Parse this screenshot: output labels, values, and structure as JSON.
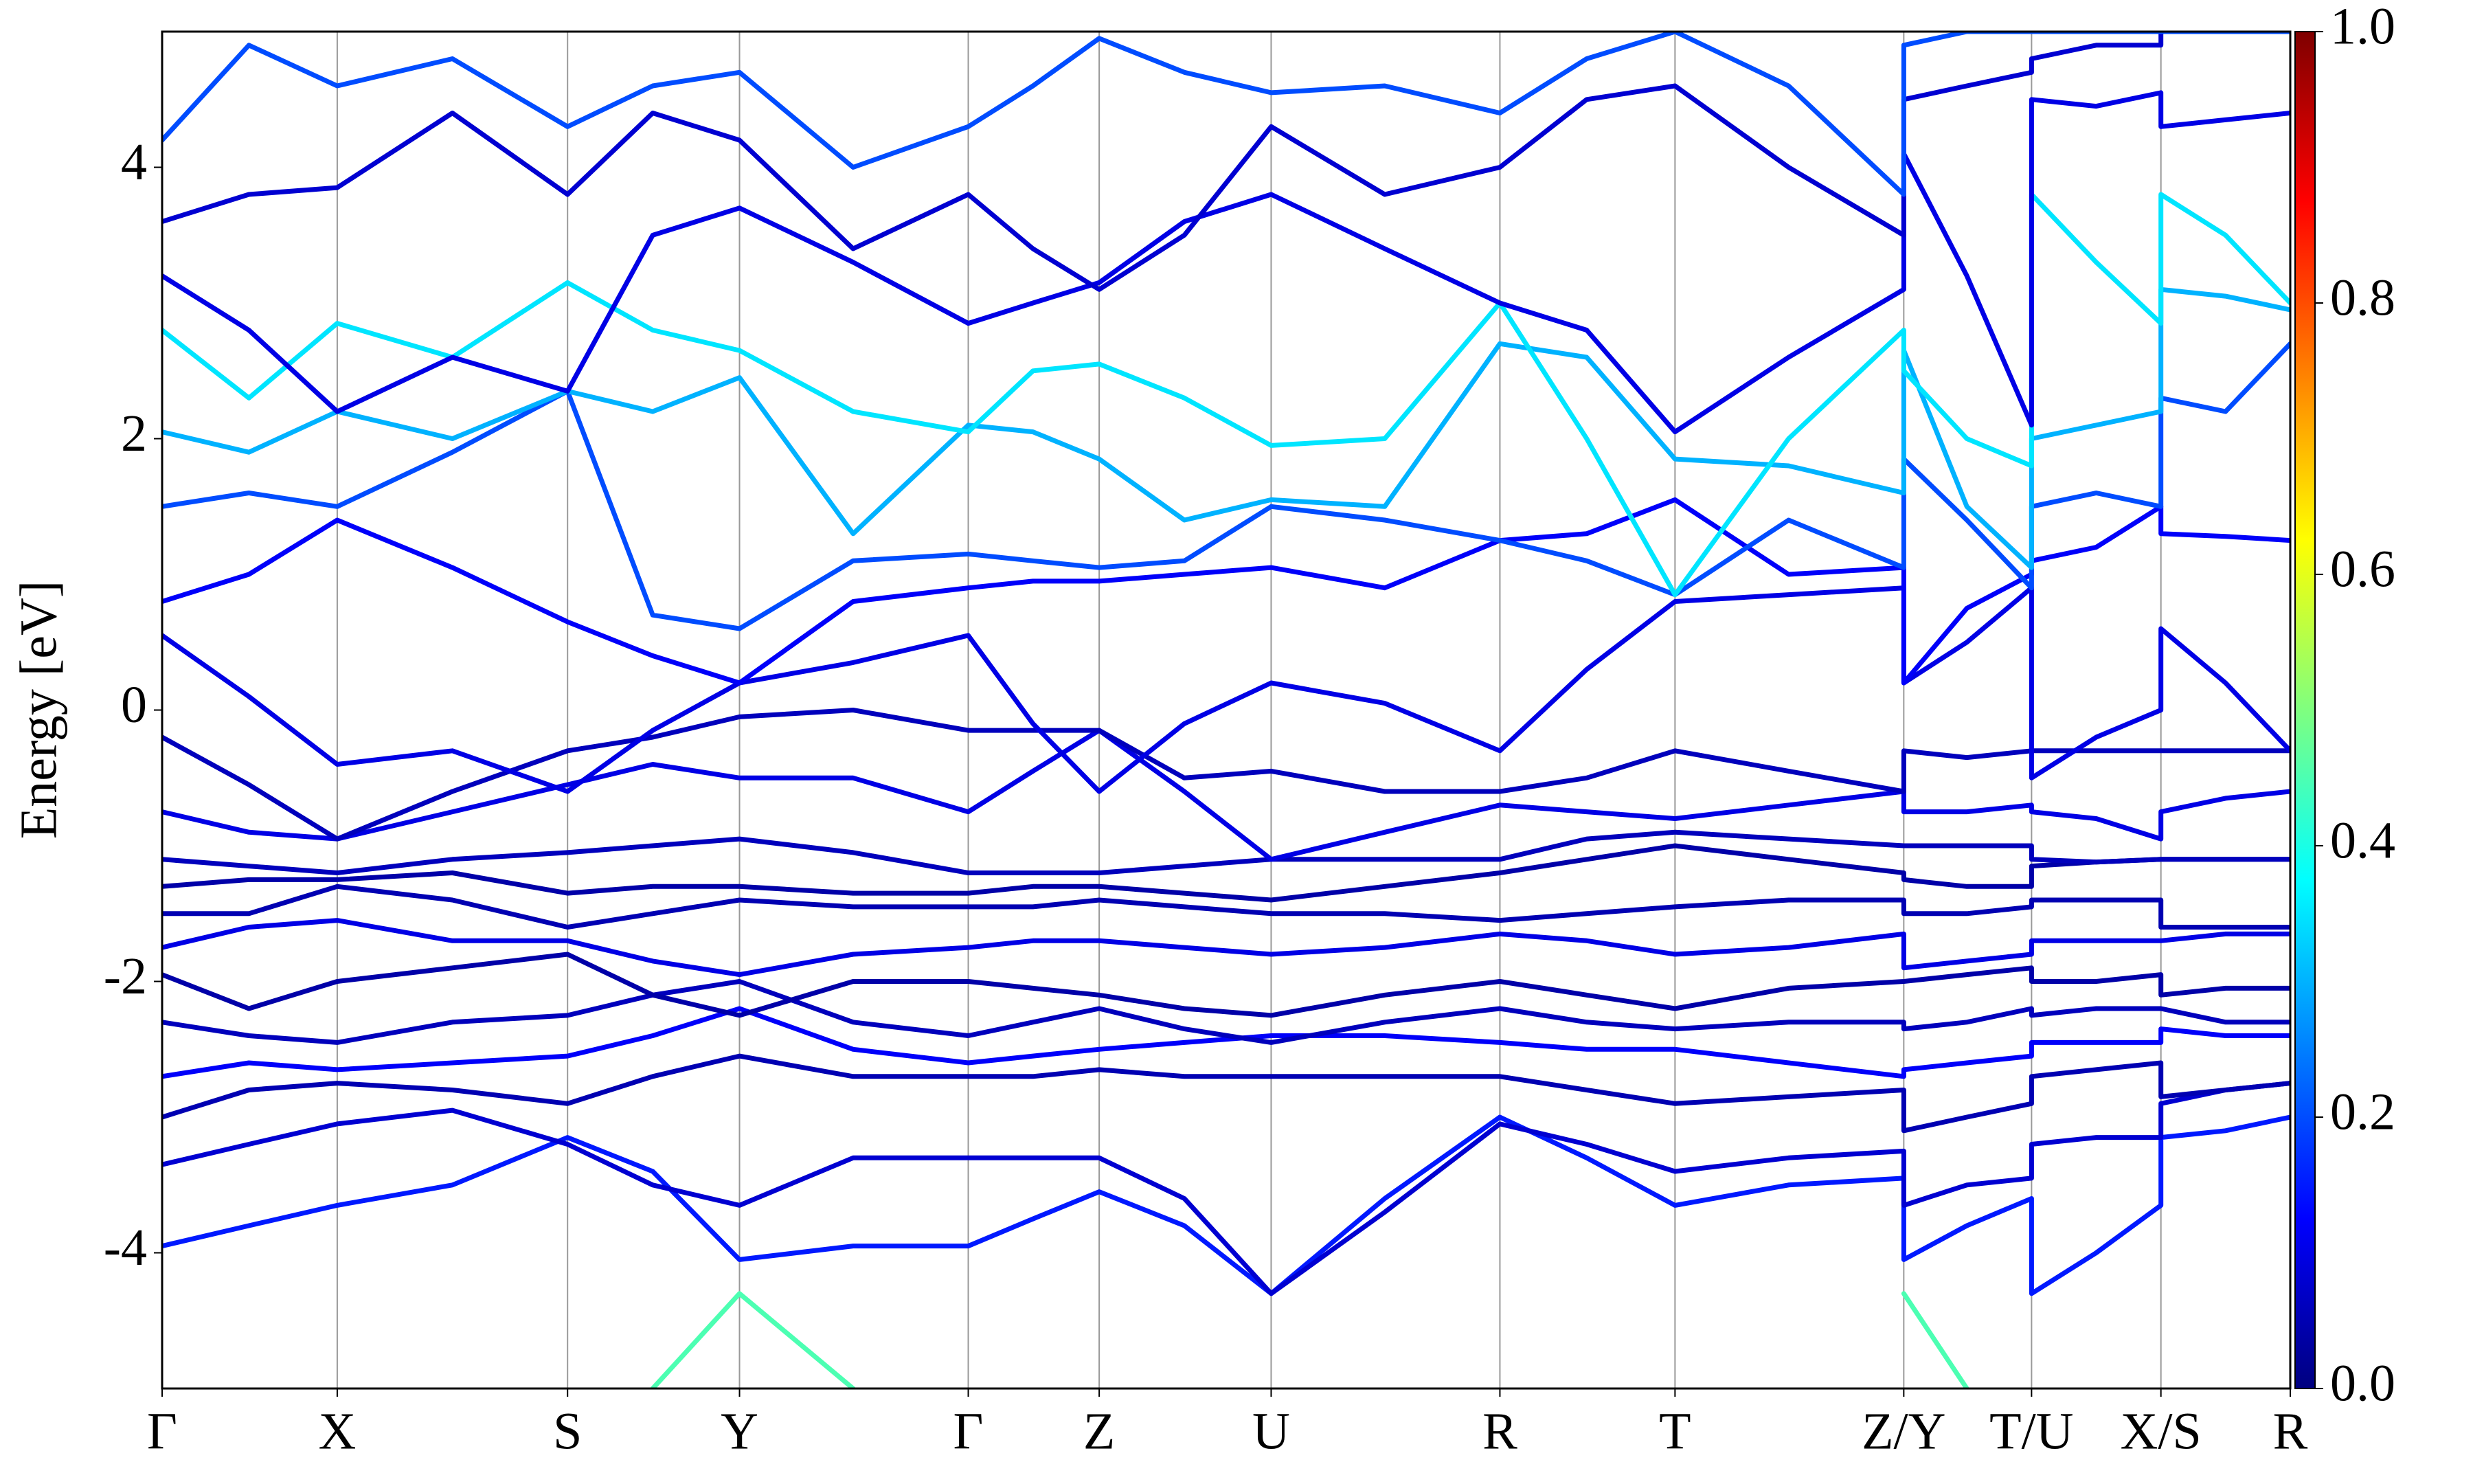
{
  "chart_data": {
    "type": "line",
    "ylabel": "Energy [eV]",
    "x": [
      0,
      0.55,
      1.11,
      1.84,
      2.57,
      3.11,
      3.66,
      4.38,
      5.11,
      5.52,
      5.94,
      6.48,
      7.03,
      7.75,
      8.48,
      9.03,
      9.59,
      10.31,
      11.04,
      11.04,
      11.44,
      11.85,
      11.85,
      12.26,
      12.67,
      12.67,
      13.08,
      13.49
    ],
    "xlim": [
      0,
      13.49
    ],
    "xticks": [
      {
        "value": 0,
        "label": "Γ"
      },
      {
        "value": 1.11,
        "label": "X"
      },
      {
        "value": 2.57,
        "label": "S"
      },
      {
        "value": 3.66,
        "label": "Y"
      },
      {
        "value": 5.11,
        "label": "Γ"
      },
      {
        "value": 5.94,
        "label": "Z"
      },
      {
        "value": 7.03,
        "label": "U"
      },
      {
        "value": 8.48,
        "label": "R"
      },
      {
        "value": 9.59,
        "label": "T"
      },
      {
        "value": 11.04,
        "label": "Z/Y"
      },
      {
        "value": 11.85,
        "label": "T/U"
      },
      {
        "value": 12.67,
        "label": "X/S"
      },
      {
        "value": 13.49,
        "label": "R"
      }
    ],
    "ylim": [
      -5,
      5
    ],
    "yticks": [
      -4,
      -2,
      0,
      2,
      4
    ],
    "vertical_grid": true,
    "colormap": [
      "#00007f",
      "#0000ff",
      "#007fff",
      "#00ffff",
      "#7fff7f",
      "#ffff00",
      "#ff7f00",
      "#ff0000",
      "#7f0000"
    ],
    "clim": [
      0,
      1
    ],
    "cticks": [
      {
        "value": 0,
        "label": "0.0"
      },
      {
        "value": 0.2,
        "label": "0.2"
      },
      {
        "value": 0.4,
        "label": "0.4"
      },
      {
        "value": 0.6,
        "label": "0.6"
      },
      {
        "value": 0.8,
        "label": "0.8"
      },
      {
        "value": 1,
        "label": "1.0"
      }
    ],
    "series": [
      {
        "weight": 0.45,
        "values": [
          null,
          null,
          null,
          null,
          null,
          -5.0,
          -4.3,
          -5.0,
          null,
          null,
          null,
          null,
          null,
          null,
          null,
          null,
          null,
          null,
          null,
          -4.3,
          -5.0,
          null,
          null,
          null,
          null,
          null,
          null,
          null
        ]
      },
      {
        "weight": 0.15,
        "values": [
          -3.95,
          -3.8,
          -3.65,
          -3.5,
          -3.15,
          -3.4,
          -4.05,
          -3.95,
          -3.95,
          -3.75,
          -3.55,
          -3.8,
          -4.3,
          -3.6,
          -3.0,
          -3.3,
          -3.65,
          -3.5,
          -3.45,
          -4.05,
          -3.8,
          -3.6,
          -4.3,
          -4.0,
          -3.65,
          -3.15,
          -3.1,
          -3.0
        ]
      },
      {
        "weight": 0.08,
        "values": [
          -3.35,
          -3.2,
          -3.05,
          -2.95,
          -3.2,
          -3.5,
          -3.65,
          -3.3,
          -3.3,
          -3.3,
          -3.3,
          -3.6,
          -4.3,
          -3.7,
          -3.05,
          -3.2,
          -3.4,
          -3.3,
          -3.25,
          -3.65,
          -3.5,
          -3.45,
          -3.2,
          -3.15,
          -3.15,
          -2.9,
          -2.8,
          -2.75
        ]
      },
      {
        "weight": 0.05,
        "values": [
          -3.0,
          -2.8,
          -2.75,
          -2.8,
          -2.9,
          -2.7,
          -2.55,
          -2.7,
          -2.7,
          -2.7,
          -2.65,
          -2.7,
          -2.7,
          -2.7,
          -2.7,
          -2.8,
          -2.9,
          -2.85,
          -2.8,
          -3.1,
          -3.0,
          -2.9,
          -2.7,
          -2.65,
          -2.6,
          -2.85,
          -2.8,
          -2.75
        ]
      },
      {
        "weight": 0.12,
        "values": [
          -2.7,
          -2.6,
          -2.65,
          -2.6,
          -2.55,
          -2.4,
          -2.2,
          -2.5,
          -2.6,
          -2.55,
          -2.5,
          -2.45,
          -2.4,
          -2.4,
          -2.45,
          -2.5,
          -2.5,
          -2.6,
          -2.7,
          -2.65,
          -2.6,
          -2.55,
          -2.45,
          -2.45,
          -2.45,
          -2.35,
          -2.4,
          -2.4
        ]
      },
      {
        "weight": 0.06,
        "values": [
          -2.3,
          -2.4,
          -2.45,
          -2.3,
          -2.25,
          -2.1,
          -2.0,
          -2.3,
          -2.4,
          -2.3,
          -2.2,
          -2.35,
          -2.45,
          -2.3,
          -2.2,
          -2.3,
          -2.35,
          -2.3,
          -2.3,
          -2.35,
          -2.3,
          -2.2,
          -2.25,
          -2.2,
          -2.2,
          -2.2,
          -2.3,
          -2.3
        ]
      },
      {
        "weight": 0.04,
        "values": [
          -1.95,
          -2.2,
          -2.0,
          -1.9,
          -1.8,
          -2.1,
          -2.25,
          -2.0,
          -2.0,
          -2.05,
          -2.1,
          -2.2,
          -2.25,
          -2.1,
          -2.0,
          -2.1,
          -2.2,
          -2.05,
          -2.0,
          -2.0,
          -1.95,
          -1.9,
          -2.0,
          -2.0,
          -1.95,
          -2.1,
          -2.05,
          -2.05
        ]
      },
      {
        "weight": 0.1,
        "values": [
          -1.75,
          -1.6,
          -1.55,
          -1.7,
          -1.7,
          -1.85,
          -1.95,
          -1.8,
          -1.75,
          -1.7,
          -1.7,
          -1.75,
          -1.8,
          -1.75,
          -1.65,
          -1.7,
          -1.8,
          -1.75,
          -1.65,
          -1.9,
          -1.85,
          -1.8,
          -1.7,
          -1.7,
          -1.7,
          -1.7,
          -1.65,
          -1.65
        ]
      },
      {
        "weight": 0.05,
        "values": [
          -1.5,
          -1.5,
          -1.3,
          -1.4,
          -1.6,
          -1.5,
          -1.4,
          -1.45,
          -1.45,
          -1.45,
          -1.4,
          -1.45,
          -1.5,
          -1.5,
          -1.55,
          -1.5,
          -1.45,
          -1.4,
          -1.4,
          -1.5,
          -1.5,
          -1.45,
          -1.4,
          -1.4,
          -1.4,
          -1.6,
          -1.6,
          -1.6
        ]
      },
      {
        "weight": 0.04,
        "values": [
          -1.3,
          -1.25,
          -1.25,
          -1.2,
          -1.35,
          -1.3,
          -1.3,
          -1.35,
          -1.35,
          -1.3,
          -1.3,
          -1.35,
          -1.4,
          -1.3,
          -1.2,
          -1.1,
          -1.0,
          -1.1,
          -1.2,
          -1.25,
          -1.3,
          -1.3,
          -1.15,
          -1.12,
          -1.1,
          -1.1,
          -1.1,
          -1.1
        ]
      },
      {
        "weight": 0.06,
        "values": [
          -1.1,
          -1.15,
          -1.2,
          -1.1,
          -1.05,
          -1.0,
          -0.95,
          -1.05,
          -1.2,
          -1.2,
          -1.2,
          -1.15,
          -1.1,
          -1.1,
          -1.1,
          -0.95,
          -0.9,
          -0.95,
          -1.0,
          -1.0,
          -1.0,
          -1.0,
          -1.1,
          -1.12,
          -1.1,
          -1.1,
          -1.1,
          -1.1
        ]
      },
      {
        "weight": 0.1,
        "values": [
          -0.75,
          -0.9,
          -0.95,
          -0.75,
          -0.55,
          -0.4,
          -0.5,
          -0.5,
          -0.75,
          -0.45,
          -0.15,
          -0.6,
          -1.1,
          -0.9,
          -0.7,
          -0.75,
          -0.8,
          -0.7,
          -0.6,
          -0.75,
          -0.75,
          -0.7,
          -0.75,
          -0.8,
          -0.95,
          -0.75,
          -0.65,
          -0.6
        ]
      },
      {
        "weight": 0.06,
        "values": [
          -0.2,
          -0.55,
          -0.95,
          -0.6,
          -0.3,
          -0.2,
          -0.05,
          0.0,
          -0.15,
          -0.15,
          -0.15,
          -0.5,
          -0.45,
          -0.6,
          -0.6,
          -0.5,
          -0.3,
          -0.45,
          -0.6,
          -0.3,
          -0.35,
          -0.3,
          -0.3,
          -0.3,
          -0.3,
          -0.3,
          -0.3,
          -0.3
        ]
      },
      {
        "weight": 0.1,
        "values": [
          0.55,
          0.1,
          -0.4,
          -0.3,
          -0.6,
          -0.15,
          0.2,
          0.35,
          0.55,
          -0.1,
          -0.6,
          -0.1,
          0.2,
          0.05,
          -0.3,
          0.3,
          0.8,
          0.85,
          0.9,
          0.2,
          0.5,
          0.9,
          -0.5,
          -0.2,
          0.0,
          0.6,
          0.2,
          -0.3
        ]
      },
      {
        "weight": 0.12,
        "values": [
          0.8,
          1.0,
          1.4,
          1.05,
          0.65,
          0.4,
          0.2,
          0.8,
          0.9,
          0.95,
          0.95,
          1.0,
          1.05,
          0.9,
          1.25,
          1.3,
          1.55,
          1.0,
          1.05,
          0.2,
          0.75,
          1.0,
          1.1,
          1.2,
          1.5,
          1.3,
          1.28,
          1.25
        ]
      },
      {
        "weight": 0.2,
        "values": [
          1.5,
          1.6,
          1.5,
          1.9,
          2.35,
          0.7,
          0.6,
          1.1,
          1.15,
          1.1,
          1.05,
          1.1,
          1.5,
          1.4,
          1.25,
          1.1,
          0.85,
          1.4,
          1.05,
          1.85,
          1.4,
          0.9,
          1.5,
          1.6,
          1.5,
          2.3,
          2.2,
          2.7
        ]
      },
      {
        "weight": 0.3,
        "values": [
          2.05,
          1.9,
          2.2,
          2.0,
          2.35,
          2.2,
          2.45,
          1.3,
          2.1,
          2.05,
          1.85,
          1.4,
          1.55,
          1.5,
          2.7,
          2.6,
          1.85,
          1.8,
          1.6,
          2.65,
          1.5,
          1.05,
          2.0,
          2.1,
          2.2,
          3.1,
          3.05,
          2.95
        ]
      },
      {
        "weight": 0.35,
        "values": [
          2.8,
          2.3,
          2.85,
          2.6,
          3.15,
          2.8,
          2.65,
          2.2,
          2.05,
          2.5,
          2.55,
          2.3,
          1.95,
          2.0,
          3.0,
          2.0,
          0.85,
          2.0,
          2.8,
          2.5,
          2.0,
          1.8,
          3.8,
          3.3,
          2.85,
          3.8,
          3.5,
          3.0
        ]
      },
      {
        "weight": 0.1,
        "values": [
          3.2,
          2.8,
          2.2,
          2.6,
          2.35,
          3.5,
          3.7,
          3.3,
          2.85,
          3.0,
          3.15,
          3.6,
          3.8,
          3.4,
          3.0,
          2.8,
          2.05,
          2.6,
          3.1,
          4.1,
          3.2,
          2.1,
          4.5,
          4.45,
          4.55,
          4.3,
          4.35,
          4.4
        ]
      },
      {
        "weight": 0.08,
        "values": [
          3.6,
          3.8,
          3.85,
          4.4,
          3.8,
          4.4,
          4.2,
          3.4,
          3.8,
          3.4,
          3.1,
          3.5,
          4.3,
          3.8,
          4.0,
          4.5,
          4.6,
          4.0,
          3.5,
          4.5,
          4.6,
          4.7,
          4.8,
          4.9,
          4.9,
          5.0,
          5.0,
          5.0
        ]
      },
      {
        "weight": 0.2,
        "values": [
          4.2,
          4.9,
          4.6,
          4.8,
          4.3,
          4.6,
          4.7,
          4.0,
          4.3,
          4.6,
          4.95,
          4.7,
          4.55,
          4.6,
          4.4,
          4.8,
          5.0,
          4.6,
          3.8,
          4.9,
          5.0,
          5.0,
          5.0,
          5.0,
          5.0,
          5.0,
          5.0,
          5.0
        ]
      }
    ]
  }
}
